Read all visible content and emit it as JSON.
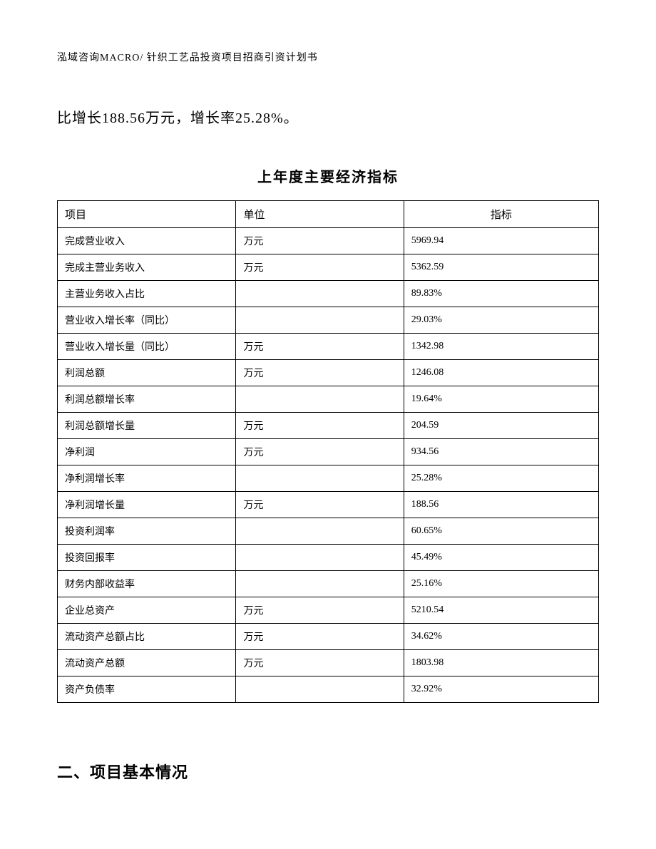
{
  "header": "泓域咨询MACRO/ 针织工艺品投资项目招商引资计划书",
  "intro": "比增长188.56万元，增长率25.28%。",
  "table_title": "上年度主要经济指标",
  "table": {
    "columns": [
      "项目",
      "单位",
      "指标"
    ],
    "rows": [
      [
        "完成营业收入",
        "万元",
        "5969.94"
      ],
      [
        "完成主营业务收入",
        "万元",
        "5362.59"
      ],
      [
        "主营业务收入占比",
        "",
        "89.83%"
      ],
      [
        "营业收入增长率（同比）",
        "",
        "29.03%"
      ],
      [
        "营业收入增长量（同比）",
        "万元",
        "1342.98"
      ],
      [
        "利润总额",
        "万元",
        "1246.08"
      ],
      [
        "利润总额增长率",
        "",
        "19.64%"
      ],
      [
        "利润总额增长量",
        "万元",
        "204.59"
      ],
      [
        "净利润",
        "万元",
        "934.56"
      ],
      [
        "净利润增长率",
        "",
        "25.28%"
      ],
      [
        "净利润增长量",
        "万元",
        "188.56"
      ],
      [
        "投资利润率",
        "",
        "60.65%"
      ],
      [
        "投资回报率",
        "",
        "45.49%"
      ],
      [
        "财务内部收益率",
        "",
        "25.16%"
      ],
      [
        "企业总资产",
        "万元",
        "5210.54"
      ],
      [
        "流动资产总额占比",
        "万元",
        "34.62%"
      ],
      [
        "流动资产总额",
        "万元",
        "1803.98"
      ],
      [
        "资产负债率",
        "",
        "32.92%"
      ]
    ]
  },
  "section_heading": "二、项目基本情况"
}
